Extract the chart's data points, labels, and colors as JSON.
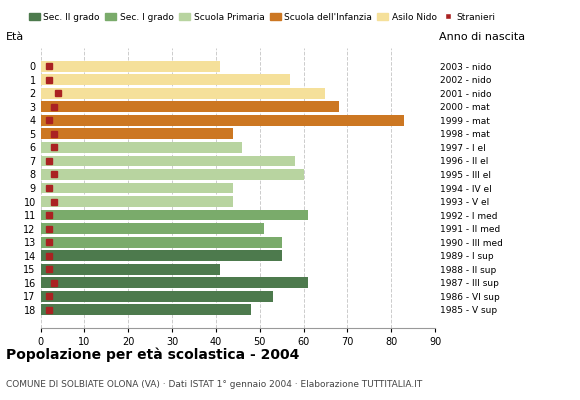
{
  "ages": [
    18,
    17,
    16,
    15,
    14,
    13,
    12,
    11,
    10,
    9,
    8,
    7,
    6,
    5,
    4,
    3,
    2,
    1,
    0
  ],
  "anni_nascita": [
    "1985 - V sup",
    "1986 - VI sup",
    "1987 - III sup",
    "1988 - II sup",
    "1989 - I sup",
    "1990 - III med",
    "1991 - II med",
    "1992 - I med",
    "1993 - V el",
    "1994 - IV el",
    "1995 - III el",
    "1996 - II el",
    "1997 - I el",
    "1998 - mat",
    "1999 - mat",
    "2000 - mat",
    "2001 - nido",
    "2002 - nido",
    "2003 - nido"
  ],
  "bar_values": [
    48,
    53,
    61,
    41,
    55,
    55,
    51,
    61,
    44,
    44,
    60,
    58,
    46,
    44,
    83,
    68,
    65,
    57,
    41
  ],
  "bar_colors": [
    "#4d7a4d",
    "#4d7a4d",
    "#4d7a4d",
    "#4d7a4d",
    "#4d7a4d",
    "#7aab6b",
    "#7aab6b",
    "#7aab6b",
    "#b8d4a0",
    "#b8d4a0",
    "#b8d4a0",
    "#b8d4a0",
    "#b8d4a0",
    "#cc7722",
    "#cc7722",
    "#cc7722",
    "#f5e09a",
    "#f5e09a",
    "#f5e09a"
  ],
  "stranieri_values": [
    2,
    2,
    3,
    2,
    2,
    2,
    2,
    2,
    3,
    2,
    3,
    2,
    3,
    3,
    2,
    3,
    4,
    2,
    2
  ],
  "legend_labels": [
    "Sec. II grado",
    "Sec. I grado",
    "Scuola Primaria",
    "Scuola dell'Infanzia",
    "Asilo Nido",
    "Stranieri"
  ],
  "legend_colors": [
    "#4d7a4d",
    "#7aab6b",
    "#b8d4a0",
    "#cc7722",
    "#f5e09a",
    "#aa2222"
  ],
  "title": "Popolazione per età scolastica - 2004",
  "subtitle": "COMUNE DI SOLBIATE OLONA (VA) · Dati ISTAT 1° gennaio 2004 · Elaborazione TUTTITALIA.IT",
  "xlabel_left": "Età",
  "xlabel_right": "Anno di nascita",
  "xlim": [
    0,
    90
  ],
  "xticks": [
    0,
    10,
    20,
    30,
    40,
    50,
    60,
    70,
    80,
    90
  ],
  "background_color": "#ffffff",
  "bar_height": 0.8,
  "grid_color": "#cccccc"
}
